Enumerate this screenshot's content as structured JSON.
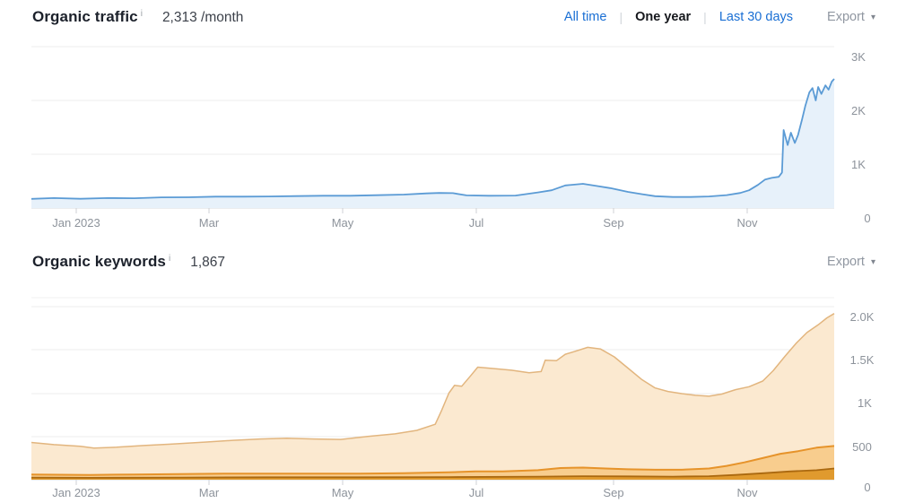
{
  "header_traffic": {
    "title": "Organic traffic",
    "info_icon": "i",
    "value": "2,313 /month",
    "tabs": [
      {
        "label": "All time",
        "active": false
      },
      {
        "label": "One year",
        "active": true
      },
      {
        "label": "Last 30 days",
        "active": false
      }
    ],
    "tab_separator": "|",
    "export_label": "Export",
    "export_caret": "▾"
  },
  "header_keywords": {
    "title": "Organic keywords",
    "info_icon": "i",
    "value": "1,867",
    "export_label": "Export",
    "export_caret": "▾"
  },
  "colors": {
    "link_blue": "#1a6fd4",
    "active_tab": "#16181d",
    "export_gray": "#9097a1",
    "gridline": "#ececec",
    "axis_line": "#d7dadd",
    "axis_label": "#8d939b",
    "traffic_line": "#5b9bd5",
    "traffic_fill": "#e7f1fa",
    "kw_light_fill": "#fbe9d0",
    "kw_light_stroke": "#e2b57e",
    "kw_mid_fill": "#f8cd8e",
    "kw_mid_stroke": "#e6932a",
    "kw_dark_fill": "#e09a2e",
    "kw_dark_stroke": "#aa680f"
  },
  "chart_data": [
    {
      "type": "area",
      "title": "Organic traffic",
      "ylabel": "",
      "xlabel": "",
      "ylim": [
        0,
        3000
      ],
      "grid": true,
      "legend_position": "none",
      "x_ticks": [
        "Jan 2023",
        "Mar",
        "May",
        "Jul",
        "Sep",
        "Nov"
      ],
      "y_ticks": [
        "3K",
        "2K",
        "1K",
        "0"
      ],
      "y_tick_values": [
        3000,
        2000,
        1000,
        0
      ],
      "series": [
        {
          "name": "organic-traffic",
          "points": [
            [
              0,
              170
            ],
            [
              0.028,
              185
            ],
            [
              0.061,
              172
            ],
            [
              0.095,
              185
            ],
            [
              0.128,
              182
            ],
            [
              0.162,
              198
            ],
            [
              0.196,
              200
            ],
            [
              0.229,
              212
            ],
            [
              0.263,
              212
            ],
            [
              0.296,
              215
            ],
            [
              0.33,
              222
            ],
            [
              0.363,
              228
            ],
            [
              0.397,
              228
            ],
            [
              0.43,
              238
            ],
            [
              0.464,
              250
            ],
            [
              0.492,
              272
            ],
            [
              0.508,
              280
            ],
            [
              0.525,
              276
            ],
            [
              0.542,
              235
            ],
            [
              0.57,
              228
            ],
            [
              0.603,
              232
            ],
            [
              0.631,
              290
            ],
            [
              0.648,
              330
            ],
            [
              0.665,
              420
            ],
            [
              0.687,
              450
            ],
            [
              0.704,
              410
            ],
            [
              0.721,
              370
            ],
            [
              0.743,
              300
            ],
            [
              0.76,
              258
            ],
            [
              0.777,
              220
            ],
            [
              0.799,
              205
            ],
            [
              0.821,
              205
            ],
            [
              0.844,
              215
            ],
            [
              0.866,
              240
            ],
            [
              0.883,
              280
            ],
            [
              0.894,
              330
            ],
            [
              0.905,
              430
            ],
            [
              0.914,
              530
            ],
            [
              0.922,
              560
            ],
            [
              0.931,
              580
            ],
            [
              0.935,
              660
            ],
            [
              0.937,
              1450
            ],
            [
              0.942,
              1170
            ],
            [
              0.946,
              1400
            ],
            [
              0.951,
              1210
            ],
            [
              0.955,
              1360
            ],
            [
              0.96,
              1650
            ],
            [
              0.964,
              1900
            ],
            [
              0.969,
              2150
            ],
            [
              0.973,
              2230
            ],
            [
              0.977,
              2000
            ],
            [
              0.98,
              2250
            ],
            [
              0.984,
              2120
            ],
            [
              0.989,
              2280
            ],
            [
              0.993,
              2200
            ],
            [
              0.997,
              2350
            ],
            [
              1,
              2400
            ]
          ]
        }
      ]
    },
    {
      "type": "area",
      "title": "Organic keywords",
      "ylabel": "",
      "xlabel": "",
      "ylim": [
        0,
        2100
      ],
      "grid": true,
      "legend_position": "none",
      "x_ticks": [
        "Jan 2023",
        "Mar",
        "May",
        "Jul",
        "Sep",
        "Nov"
      ],
      "y_ticks": [
        "2.0K",
        "1.5K",
        "1K",
        "500",
        "0"
      ],
      "y_tick_values": [
        2000,
        1500,
        1000,
        500,
        0
      ],
      "series": [
        {
          "name": "keywords-light-band",
          "points": [
            [
              0,
              430
            ],
            [
              0.028,
              405
            ],
            [
              0.061,
              385
            ],
            [
              0.078,
              365
            ],
            [
              0.106,
              375
            ],
            [
              0.14,
              395
            ],
            [
              0.173,
              410
            ],
            [
              0.218,
              435
            ],
            [
              0.251,
              455
            ],
            [
              0.285,
              470
            ],
            [
              0.318,
              480
            ],
            [
              0.352,
              470
            ],
            [
              0.385,
              465
            ],
            [
              0.419,
              500
            ],
            [
              0.453,
              530
            ],
            [
              0.48,
              570
            ],
            [
              0.503,
              640
            ],
            [
              0.511,
              800
            ],
            [
              0.52,
              1000
            ],
            [
              0.527,
              1090
            ],
            [
              0.536,
              1080
            ],
            [
              0.547,
              1200
            ],
            [
              0.556,
              1300
            ],
            [
              0.575,
              1285
            ],
            [
              0.598,
              1265
            ],
            [
              0.62,
              1235
            ],
            [
              0.635,
              1250
            ],
            [
              0.64,
              1380
            ],
            [
              0.654,
              1375
            ],
            [
              0.665,
              1450
            ],
            [
              0.676,
              1480
            ],
            [
              0.693,
              1530
            ],
            [
              0.709,
              1510
            ],
            [
              0.726,
              1420
            ],
            [
              0.743,
              1290
            ],
            [
              0.76,
              1160
            ],
            [
              0.777,
              1060
            ],
            [
              0.793,
              1020
            ],
            [
              0.81,
              995
            ],
            [
              0.827,
              975
            ],
            [
              0.844,
              965
            ],
            [
              0.86,
              990
            ],
            [
              0.877,
              1040
            ],
            [
              0.894,
              1075
            ],
            [
              0.911,
              1140
            ],
            [
              0.924,
              1260
            ],
            [
              0.939,
              1430
            ],
            [
              0.953,
              1580
            ],
            [
              0.966,
              1700
            ],
            [
              0.98,
              1790
            ],
            [
              0.991,
              1870
            ],
            [
              1,
              1920
            ]
          ]
        },
        {
          "name": "keywords-medium-band",
          "points": [
            [
              0,
              60
            ],
            [
              0.073,
              55
            ],
            [
              0.128,
              60
            ],
            [
              0.184,
              65
            ],
            [
              0.24,
              70
            ],
            [
              0.296,
              70
            ],
            [
              0.352,
              70
            ],
            [
              0.408,
              70
            ],
            [
              0.464,
              75
            ],
            [
              0.52,
              85
            ],
            [
              0.553,
              95
            ],
            [
              0.587,
              95
            ],
            [
              0.631,
              110
            ],
            [
              0.659,
              135
            ],
            [
              0.687,
              140
            ],
            [
              0.715,
              130
            ],
            [
              0.743,
              120
            ],
            [
              0.777,
              115
            ],
            [
              0.81,
              115
            ],
            [
              0.844,
              130
            ],
            [
              0.866,
              160
            ],
            [
              0.888,
              200
            ],
            [
              0.911,
              250
            ],
            [
              0.933,
              300
            ],
            [
              0.955,
              330
            ],
            [
              0.978,
              370
            ],
            [
              1,
              390
            ]
          ]
        },
        {
          "name": "keywords-dark-band",
          "points": [
            [
              0,
              25
            ],
            [
              0.073,
              22
            ],
            [
              0.184,
              25
            ],
            [
              0.296,
              28
            ],
            [
              0.408,
              28
            ],
            [
              0.52,
              30
            ],
            [
              0.631,
              35
            ],
            [
              0.687,
              40
            ],
            [
              0.743,
              38
            ],
            [
              0.799,
              35
            ],
            [
              0.844,
              40
            ],
            [
              0.877,
              55
            ],
            [
              0.911,
              75
            ],
            [
              0.944,
              95
            ],
            [
              0.978,
              110
            ],
            [
              1,
              130
            ]
          ]
        }
      ]
    }
  ]
}
